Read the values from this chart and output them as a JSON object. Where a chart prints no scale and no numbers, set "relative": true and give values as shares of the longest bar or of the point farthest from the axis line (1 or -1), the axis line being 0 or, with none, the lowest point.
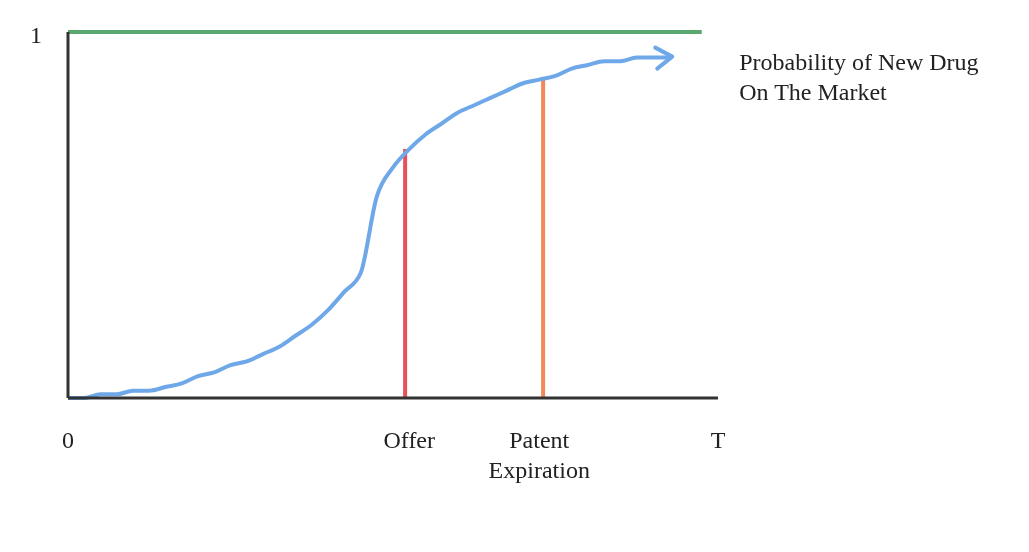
{
  "chart_data": {
    "type": "line",
    "relative": true,
    "categories": [
      "0",
      null,
      null,
      null,
      null,
      null,
      null,
      null,
      null,
      null,
      null,
      null,
      null,
      null,
      null,
      null,
      null,
      null,
      null,
      null,
      null,
      "Offer",
      null,
      null,
      null,
      null,
      null,
      null,
      null,
      "Patent Expiration",
      null,
      null,
      null,
      null,
      null,
      null,
      null,
      null,
      null,
      null,
      "T"
    ],
    "grid": false,
    "legend": false,
    "annotations": [
      "1"
    ],
    "series": [
      {
        "color": "#5aa870",
        "values": [
          1,
          1,
          1,
          1,
          1,
          1,
          1,
          1,
          1,
          1,
          1,
          1,
          1,
          1,
          1,
          1,
          1,
          1,
          1,
          1,
          1,
          1,
          1,
          1,
          1,
          1,
          1,
          1,
          1,
          1,
          1,
          1,
          1,
          1,
          1,
          1,
          1,
          1,
          1,
          1,
          null
        ]
      },
      {
        "name": "Probability of New Drug On The Market",
        "color": "#6fa8e8",
        "values": [
          0,
          0,
          0.01,
          0.01,
          0.02,
          0.02,
          0.03,
          0.04,
          0.06,
          0.07,
          0.09,
          0.1,
          0.12,
          0.14,
          0.17,
          0.2,
          0.24,
          0.29,
          0.34,
          0.55,
          0.63,
          0.68,
          0.72,
          0.75,
          0.78,
          0.8,
          0.82,
          0.84,
          0.86,
          0.87,
          0.88,
          0.9,
          0.91,
          0.92,
          0.92,
          0.93,
          0.93,
          0.93,
          null,
          null,
          null
        ]
      },
      {
        "type": "bar",
        "color": "#e8505a",
        "values": [
          null,
          null,
          null,
          null,
          null,
          null,
          null,
          null,
          null,
          null,
          null,
          null,
          null,
          null,
          null,
          null,
          null,
          null,
          null,
          null,
          null,
          0.68,
          null,
          null,
          null,
          null,
          null,
          null,
          null,
          null,
          null,
          null,
          null,
          null,
          null,
          null,
          null,
          null,
          null,
          null,
          null
        ]
      },
      {
        "type": "bar",
        "color": "#f4885a",
        "values": [
          null,
          null,
          null,
          null,
          null,
          null,
          null,
          null,
          null,
          null,
          null,
          null,
          null,
          null,
          null,
          null,
          null,
          null,
          null,
          null,
          null,
          null,
          null,
          null,
          null,
          null,
          null,
          null,
          null,
          0.87,
          null,
          null,
          null,
          null,
          null,
          null,
          null,
          null,
          null,
          null,
          null
        ]
      }
    ]
  }
}
